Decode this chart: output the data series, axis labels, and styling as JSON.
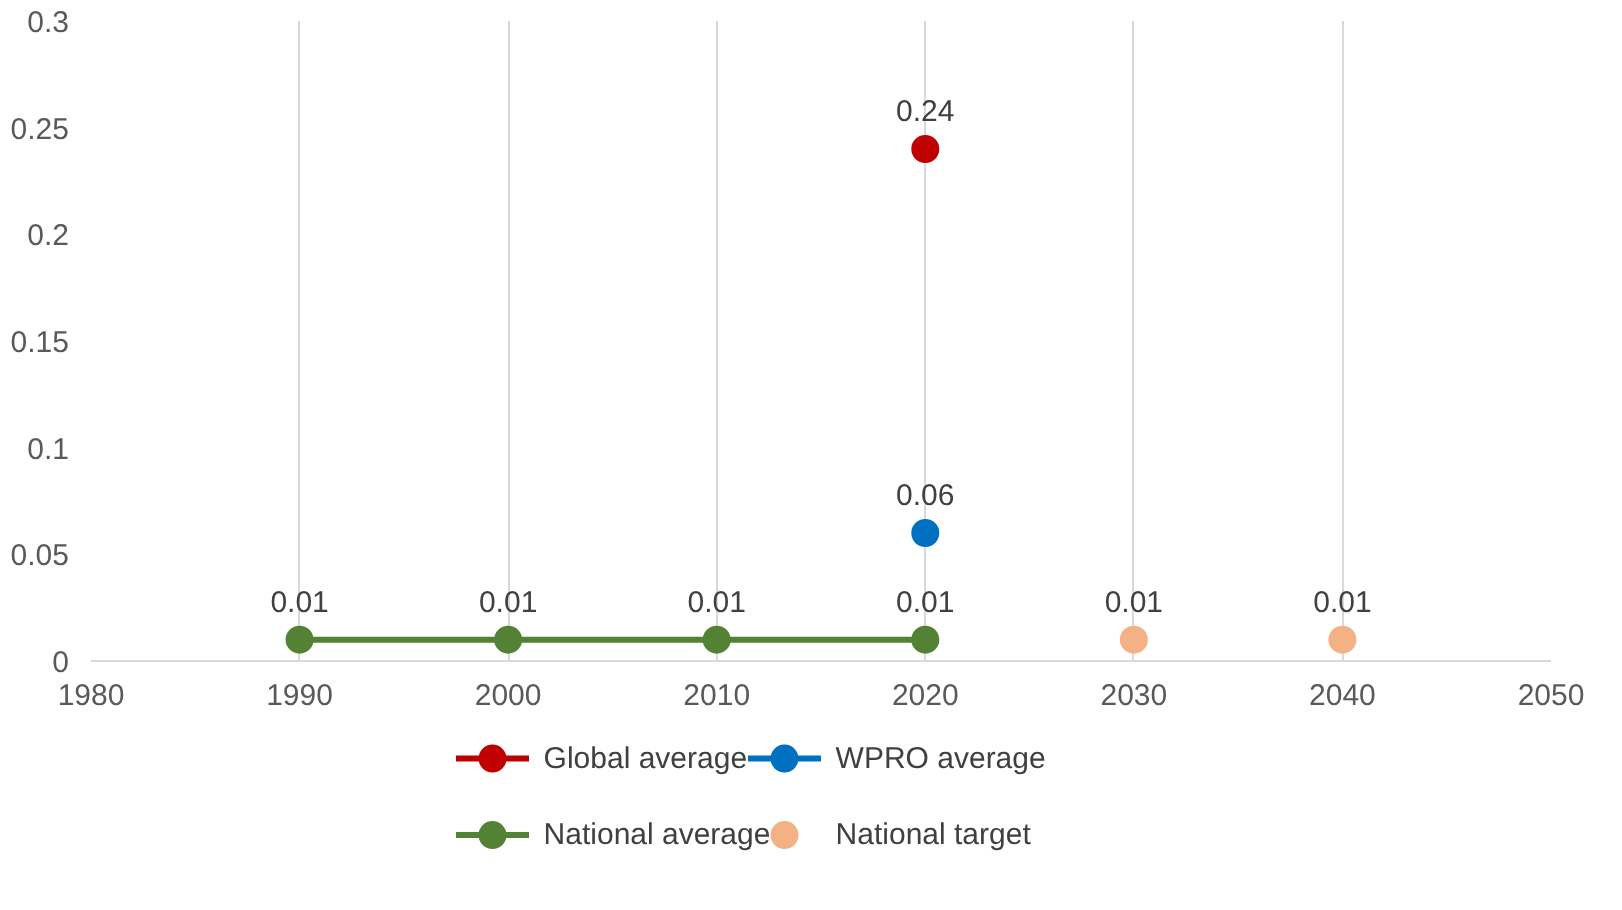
{
  "chart_data": {
    "type": "line",
    "xlim": [
      1980,
      2050
    ],
    "xticks": [
      1980,
      1990,
      2000,
      2010,
      2020,
      2030,
      2040,
      2050
    ],
    "ylim": [
      0,
      0.3
    ],
    "yticks": [
      0,
      0.05,
      0.1,
      0.15,
      0.2,
      0.25,
      0.3
    ],
    "grid": "x",
    "legend": "bottom",
    "marker": "circle",
    "data_labels": true,
    "series": [
      {
        "name": "Global average",
        "color": "#c00000",
        "x": [
          2020
        ],
        "values": [
          0.24
        ]
      },
      {
        "name": "WPRO average",
        "color": "#0070c0",
        "x": [
          2020
        ],
        "values": [
          0.06
        ]
      },
      {
        "name": "National average",
        "color": "#548235",
        "x": [
          1990,
          2000,
          2010,
          2020
        ],
        "values": [
          0.01,
          0.01,
          0.01,
          0.01
        ]
      },
      {
        "name": "National target",
        "type": "scatter",
        "color": "#f4b183",
        "x": [
          2030,
          2040
        ],
        "values": [
          0.01,
          0.01
        ]
      }
    ]
  }
}
